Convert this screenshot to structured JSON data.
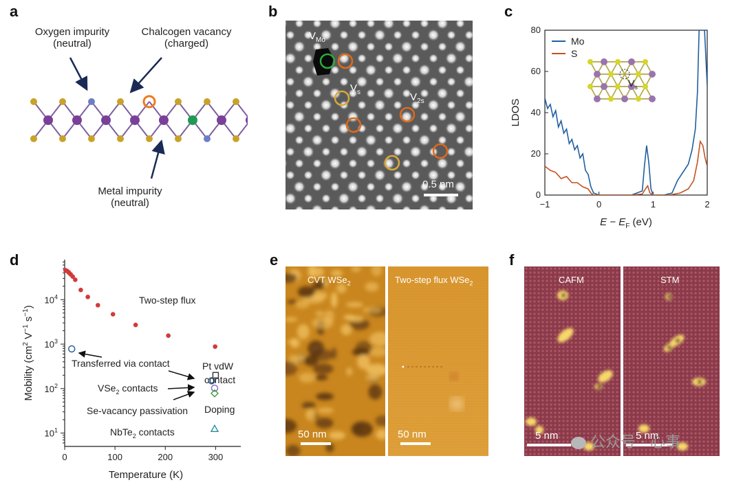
{
  "panels": {
    "a": {
      "letter": "a",
      "oxygen_line1": "Oxygen impurity",
      "oxygen_line2": "(neutral)",
      "vacancy_line1": "Chalcogen vacancy",
      "vacancy_line2": "(charged)",
      "metal_line1": "Metal impurity",
      "metal_line2": "(neutral)"
    },
    "b": {
      "letter": "b",
      "v_mo": "V",
      "v_mo_sub": "Mo",
      "v_s": "V",
      "v_s_sub": "s",
      "v_2s": "V",
      "v_2s_sub": "2s",
      "scale": "0.5 nm"
    },
    "c": {
      "letter": "c",
      "inset_label": "V",
      "inset_label_sub": "s"
    },
    "d": {
      "letter": "d",
      "ann_two_step": "Two-step flux",
      "ann_transferred": "Transferred via contact",
      "ann_pt_1": "Pt vdW",
      "ann_pt_2": "contact",
      "ann_vse2": "VSe",
      "ann_vse2_sub": "2",
      "ann_vse2_tail": " contacts",
      "ann_sevac": "Se-vacancy passivation",
      "ann_doping": "Doping",
      "ann_nbte2": "NbTe",
      "ann_nbte2_sub": "2",
      "ann_nbte2_tail": " contacts"
    },
    "e": {
      "letter": "e",
      "left_title": "CVT WSe",
      "left_title_sub": "2",
      "right_title": "Two-step flux WSe",
      "right_title_sub": "2",
      "left_scale": "50 nm",
      "right_scale": "50 nm"
    },
    "f": {
      "letter": "f",
      "left_title": "CAFM",
      "right_title": "STM",
      "left_scale": "5 nm",
      "right_scale": "5 nm"
    }
  },
  "watermark": "公众号 · 心事",
  "chart_data": [
    {
      "panel": "c",
      "type": "line",
      "title": "",
      "xlabel": "E − E",
      "xlabel_sub": "F",
      "xlabel_unit": " (eV)",
      "ylabel": "LDOS",
      "xlim": [
        -1,
        2
      ],
      "ylim": [
        0,
        80
      ],
      "xticks": [
        -1,
        0,
        1,
        2
      ],
      "yticks": [
        0,
        20,
        40,
        60,
        80
      ],
      "grid": false,
      "legend": "top-left",
      "series": [
        {
          "name": "Mo",
          "color": "#1f5fa0",
          "x": [
            -1.0,
            -0.95,
            -0.9,
            -0.85,
            -0.8,
            -0.75,
            -0.7,
            -0.65,
            -0.6,
            -0.55,
            -0.5,
            -0.45,
            -0.4,
            -0.35,
            -0.3,
            -0.25,
            -0.2,
            -0.15,
            -0.1,
            0.0,
            0.2,
            0.4,
            0.6,
            0.8,
            0.84,
            0.88,
            0.92,
            0.96,
            1.0,
            1.2,
            1.35,
            1.45,
            1.55,
            1.65,
            1.72,
            1.78,
            1.82,
            1.85,
            1.9,
            1.95,
            2.0
          ],
          "y": [
            47,
            42,
            44,
            38,
            41,
            33,
            36,
            30,
            32,
            25,
            27,
            22,
            24,
            18,
            20,
            12,
            10,
            4,
            1,
            0,
            0,
            0,
            0,
            2,
            14,
            24,
            16,
            3,
            0,
            0,
            1,
            7,
            11,
            15,
            22,
            32,
            50,
            80,
            80,
            80,
            53
          ]
        },
        {
          "name": "S",
          "color": "#c4501f",
          "x": [
            -1.0,
            -0.9,
            -0.8,
            -0.7,
            -0.6,
            -0.5,
            -0.4,
            -0.3,
            -0.2,
            -0.15,
            -0.1,
            0.0,
            0.3,
            0.6,
            0.8,
            0.86,
            0.9,
            0.94,
            1.0,
            1.3,
            1.5,
            1.65,
            1.75,
            1.82,
            1.87,
            1.92,
            1.96,
            2.0
          ],
          "y": [
            14,
            12,
            11,
            8,
            9,
            6,
            6,
            4,
            3,
            1,
            0,
            0,
            0,
            0,
            0.5,
            3,
            4.5,
            1,
            0,
            0,
            1,
            3,
            7,
            16,
            26,
            24,
            18,
            14
          ]
        }
      ]
    },
    {
      "panel": "d",
      "type": "scatter",
      "title": "",
      "xlabel": "Temperature (K)",
      "ylabel": "Mobility (cm",
      "ylabel_sup1": "2",
      "ylabel_mid": " V",
      "ylabel_sup2": "−1",
      "ylabel_mid2": " s",
      "ylabel_sup3": "−1",
      "ylabel_tail": ")",
      "xlim": [
        0,
        350
      ],
      "ylim_log10": [
        0.7,
        4.9
      ],
      "yscale": "log",
      "xticks": [
        0,
        100,
        200,
        300
      ],
      "yticks": [
        {
          "value": 10,
          "base": "10",
          "exp": "1"
        },
        {
          "value": 100,
          "base": "10",
          "exp": "2"
        },
        {
          "value": 1000,
          "base": "10",
          "exp": "3"
        },
        {
          "value": 10000,
          "base": "10",
          "exp": "4"
        }
      ],
      "grid": false,
      "series": [
        {
          "name": "Two-step flux",
          "marker": "filled-circle",
          "color": "#d23a3a",
          "points": [
            [
              1.5,
              46000
            ],
            [
              3,
              45000
            ],
            [
              5,
              44000
            ],
            [
              7,
              42000
            ],
            [
              9,
              40000
            ],
            [
              12,
              37000
            ],
            [
              16,
              33000
            ],
            [
              21,
              28000
            ],
            [
              32,
              16500
            ],
            [
              46,
              11500
            ],
            [
              66,
              7500
            ],
            [
              96,
              4700
            ],
            [
              141,
              2700
            ],
            [
              206,
              1550
            ],
            [
              299,
              880
            ]
          ]
        },
        {
          "name": "Transferred via contact",
          "marker": "open-circle",
          "color": "#2a5f9e",
          "points": [
            [
              14,
              780
            ]
          ]
        },
        {
          "name": "Pt vdW contact",
          "marker": "open-square",
          "color": "#333333",
          "points": [
            [
              300,
              200
            ]
          ]
        },
        {
          "name": "VSe2 contacts",
          "marker": "open-circle",
          "color": "#2a5f9e",
          "points": [
            [
              292,
              150
            ]
          ]
        },
        {
          "name": "Se-vacancy passivation",
          "marker": "open-circle",
          "color": "#8a6fc0",
          "points": [
            [
              298,
              102
            ]
          ]
        },
        {
          "name": "Doping",
          "marker": "open-diamond",
          "color": "#3e9a3e",
          "points": [
            [
              298,
              78
            ]
          ]
        },
        {
          "name": "NbTe2 contacts",
          "marker": "open-triangle",
          "color": "#2a8c9c",
          "points": [
            [
              298,
              12.5
            ]
          ]
        }
      ]
    }
  ]
}
